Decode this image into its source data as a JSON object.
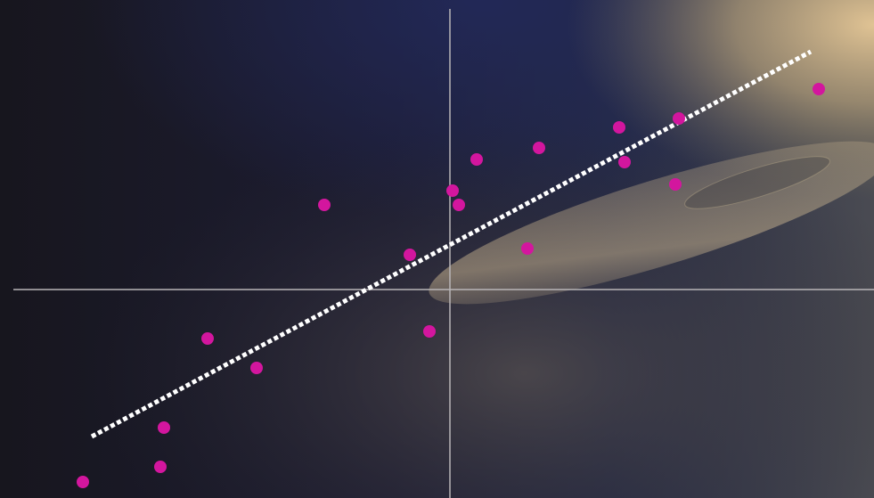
{
  "chart_data": {
    "type": "scatter",
    "x": [
      -41.2,
      -32.5,
      -32.1,
      -27.2,
      -21.7,
      -14.1,
      -4.5,
      -2.3,
      0.3,
      1.0,
      3.0,
      8.7,
      10.0,
      19.0,
      19.6,
      25.3,
      25.7,
      41.4
    ],
    "values": [
      -21.6,
      -19.9,
      -15.5,
      -5.5,
      -8.8,
      9.5,
      3.9,
      -4.7,
      11.1,
      9.5,
      14.6,
      4.6,
      15.9,
      18.2,
      14.3,
      11.8,
      19.2,
      22.5
    ],
    "color": "#d3169e",
    "trendline": {
      "x": [
        -40.2,
        40.5
      ],
      "values": [
        -16.5,
        26.7
      ],
      "color": "#ffffff"
    },
    "xlim": [
      -49,
      47.6
    ],
    "ylim": [
      -23.4,
      31.5
    ]
  }
}
